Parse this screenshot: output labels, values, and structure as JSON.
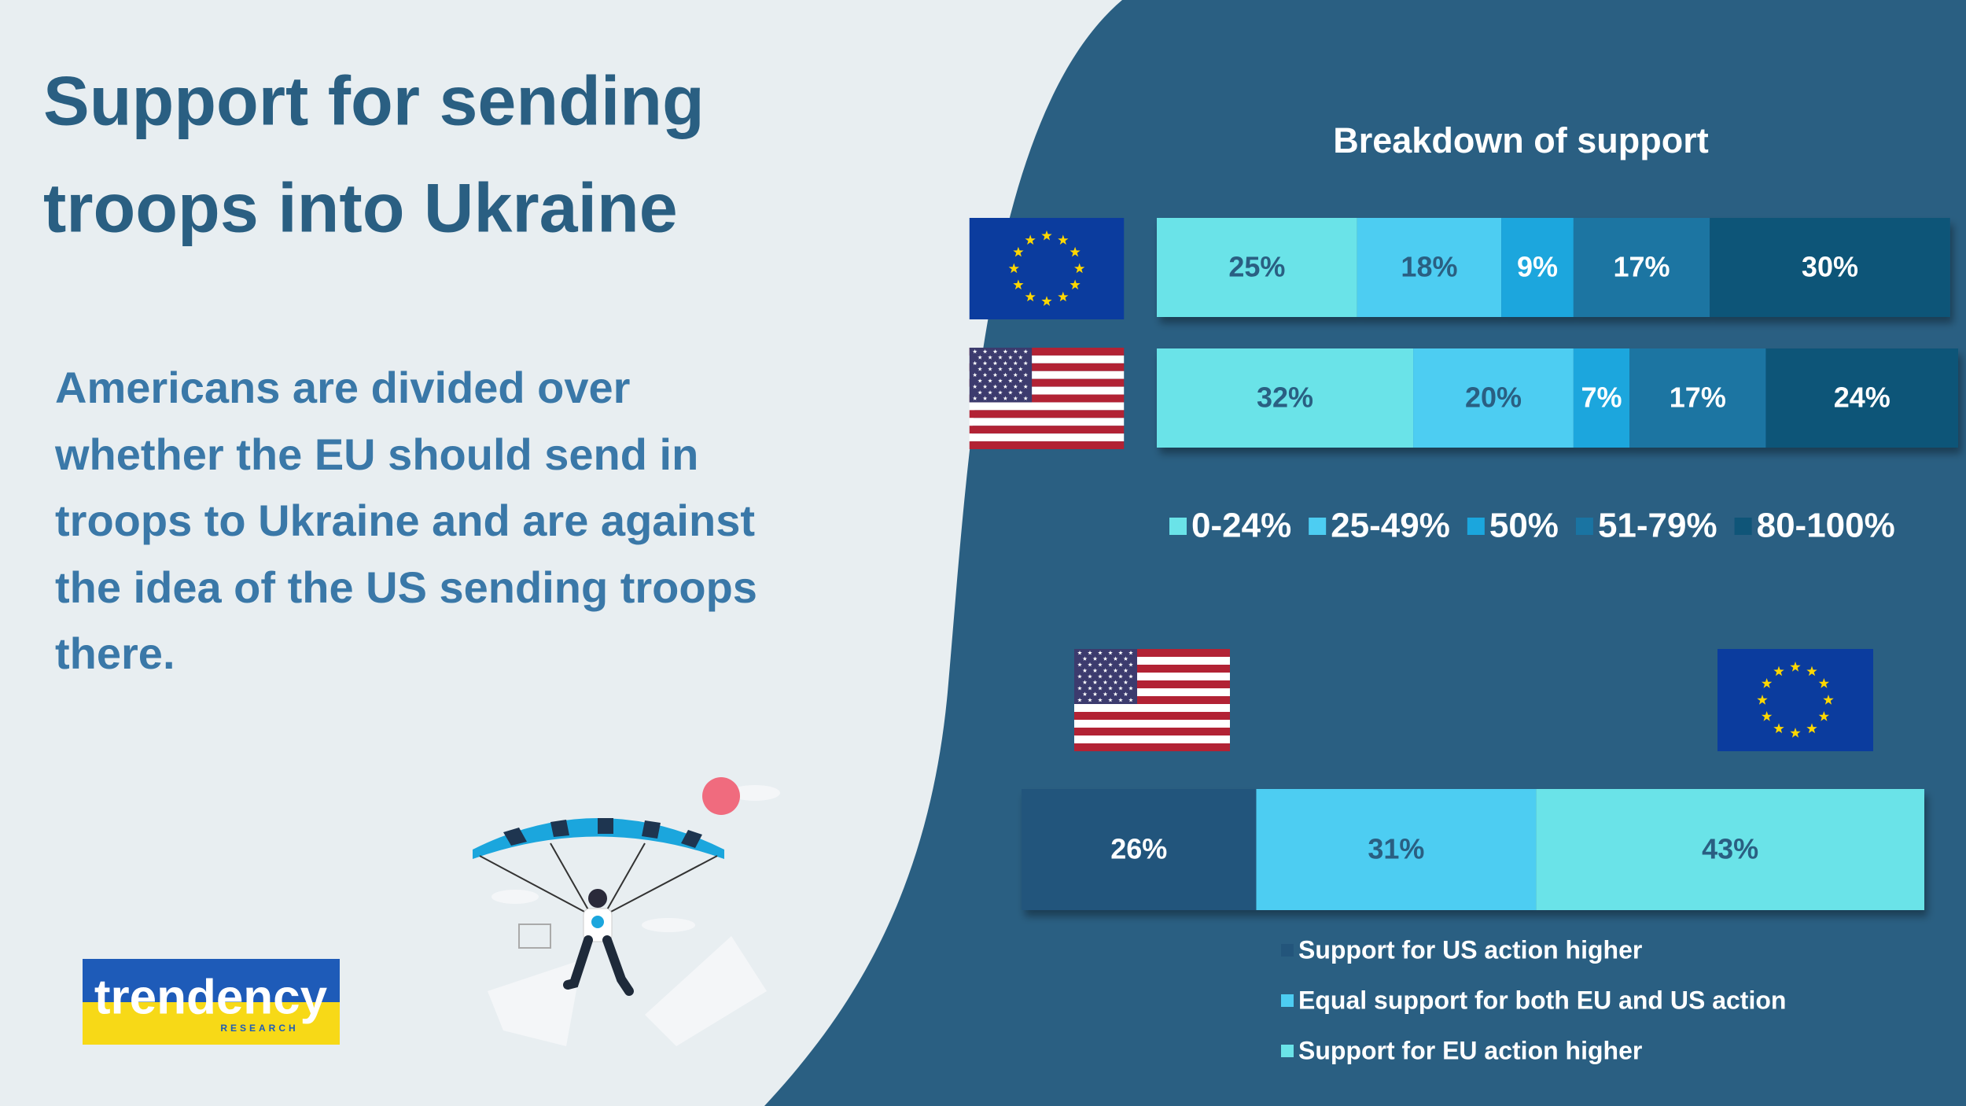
{
  "header": {
    "title": [
      "Support for sending",
      "troops into Ukraine"
    ],
    "subtitle": [
      "Americans are divided over",
      "whether the EU should send in",
      "troops to Ukraine and are against",
      "the idea of the US sending troops",
      "there."
    ]
  },
  "logo": {
    "name": "trendency",
    "tagline": "RESEARCH"
  },
  "chart_data": [
    {
      "type": "bar",
      "stacked": true,
      "orientation": "horizontal",
      "title": "Breakdown of support",
      "categories": [
        null,
        null
      ],
      "xlim": [
        0,
        100
      ],
      "legend": "bottom",
      "series": [
        {
          "name": "0-24%",
          "color": "#6ae3e8",
          "values": [
            25,
            32
          ],
          "value_labels": [
            "25%",
            "32%"
          ]
        },
        {
          "name": "25-49%",
          "color": "#4dcdf2",
          "values": [
            18,
            20
          ],
          "value_labels": [
            "18%",
            "20%"
          ]
        },
        {
          "name": "50%",
          "color": "#1ba6dd",
          "values": [
            9,
            7
          ],
          "value_labels": [
            "9%",
            "7%"
          ]
        },
        {
          "name": "51-79%",
          "color": "#1a74a2",
          "values": [
            17,
            17
          ],
          "value_labels": [
            "17%",
            "17%"
          ]
        },
        {
          "name": "80-100%",
          "color": "#0f5578",
          "values": [
            30,
            24
          ],
          "value_labels": [
            "30%",
            "24%"
          ]
        }
      ]
    },
    {
      "type": "bar",
      "stacked": true,
      "orientation": "horizontal",
      "categories": [
        null
      ],
      "xlim": [
        0,
        100
      ],
      "legend": "bottom",
      "series": [
        {
          "name": "Support for US action higher",
          "color": "#23557b",
          "values": [
            26
          ],
          "value_labels": [
            "26%"
          ]
        },
        {
          "name": "Equal support for both EU and US action",
          "color": "#4dcdf2",
          "values": [
            31
          ],
          "value_labels": [
            "31%"
          ]
        },
        {
          "name": "Support for EU action higher",
          "color": "#6ae3e8",
          "values": [
            43
          ],
          "value_labels": [
            "43%"
          ]
        }
      ]
    }
  ]
}
